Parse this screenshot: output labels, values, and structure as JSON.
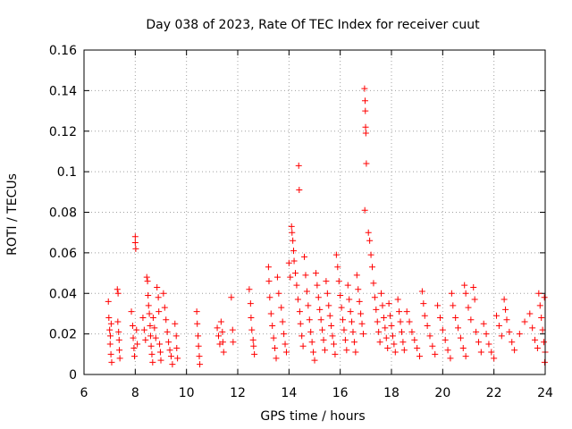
{
  "chart_data": {
    "type": "scatter",
    "title": "Day 038 of 2023, Rate Of TEC Index for receiver cuut",
    "xlabel": "GPS time / hours",
    "ylabel": "ROTI / TECUs",
    "xlim": [
      6,
      24
    ],
    "ylim": [
      0,
      0.16
    ],
    "xticks": [
      "6",
      "8",
      "10",
      "12",
      "14",
      "16",
      "18",
      "20",
      "22",
      "24"
    ],
    "yticks": [
      "0",
      "0.02",
      "0.04",
      "0.06",
      "0.08",
      "0.1",
      "0.12",
      "0.14",
      "0.16"
    ],
    "grid": true,
    "marker": "+",
    "color": "#ff0000",
    "series": [
      {
        "points": [
          [
            6.95,
            0.036
          ],
          [
            6.97,
            0.028
          ],
          [
            7.0,
            0.022
          ],
          [
            7.02,
            0.015
          ],
          [
            7.05,
            0.01
          ],
          [
            7.08,
            0.006
          ],
          [
            7.03,
            0.019
          ],
          [
            7.06,
            0.025
          ],
          [
            7.3,
            0.042
          ],
          [
            7.33,
            0.04
          ],
          [
            7.32,
            0.026
          ],
          [
            7.35,
            0.021
          ],
          [
            7.37,
            0.017
          ],
          [
            7.38,
            0.012
          ],
          [
            7.4,
            0.008
          ],
          [
            7.85,
            0.031
          ],
          [
            7.9,
            0.024
          ],
          [
            7.92,
            0.018
          ],
          [
            7.95,
            0.013
          ],
          [
            7.97,
            0.009
          ],
          [
            8.0,
            0.068
          ],
          [
            8.0,
            0.065
          ],
          [
            8.02,
            0.062
          ],
          [
            8.05,
            0.022
          ],
          [
            8.08,
            0.015
          ],
          [
            8.3,
            0.028
          ],
          [
            8.35,
            0.022
          ],
          [
            8.4,
            0.017
          ],
          [
            8.45,
            0.048
          ],
          [
            8.48,
            0.046
          ],
          [
            8.5,
            0.039
          ],
          [
            8.52,
            0.034
          ],
          [
            8.55,
            0.03
          ],
          [
            8.58,
            0.024
          ],
          [
            8.6,
            0.019
          ],
          [
            8.62,
            0.014
          ],
          [
            8.65,
            0.01
          ],
          [
            8.68,
            0.006
          ],
          [
            8.7,
            0.028
          ],
          [
            8.75,
            0.023
          ],
          [
            8.8,
            0.018
          ],
          [
            8.85,
            0.043
          ],
          [
            8.9,
            0.038
          ],
          [
            8.92,
            0.031
          ],
          [
            8.95,
            0.015
          ],
          [
            8.98,
            0.011
          ],
          [
            9.0,
            0.007
          ],
          [
            9.1,
            0.04
          ],
          [
            9.15,
            0.033
          ],
          [
            9.2,
            0.027
          ],
          [
            9.25,
            0.021
          ],
          [
            9.3,
            0.016
          ],
          [
            9.35,
            0.012
          ],
          [
            9.4,
            0.009
          ],
          [
            9.45,
            0.005
          ],
          [
            9.55,
            0.025
          ],
          [
            9.6,
            0.019
          ],
          [
            9.62,
            0.013
          ],
          [
            9.65,
            0.008
          ],
          [
            10.4,
            0.031
          ],
          [
            10.42,
            0.025
          ],
          [
            10.45,
            0.019
          ],
          [
            10.47,
            0.014
          ],
          [
            10.5,
            0.009
          ],
          [
            10.52,
            0.005
          ],
          [
            11.2,
            0.023
          ],
          [
            11.25,
            0.019
          ],
          [
            11.3,
            0.015
          ],
          [
            11.35,
            0.026
          ],
          [
            11.4,
            0.021
          ],
          [
            11.42,
            0.016
          ],
          [
            11.45,
            0.011
          ],
          [
            11.75,
            0.038
          ],
          [
            11.8,
            0.022
          ],
          [
            11.82,
            0.016
          ],
          [
            12.45,
            0.042
          ],
          [
            12.5,
            0.035
          ],
          [
            12.52,
            0.028
          ],
          [
            12.55,
            0.022
          ],
          [
            12.6,
            0.017
          ],
          [
            12.62,
            0.014
          ],
          [
            12.65,
            0.01
          ],
          [
            13.2,
            0.053
          ],
          [
            13.22,
            0.046
          ],
          [
            13.25,
            0.038
          ],
          [
            13.3,
            0.03
          ],
          [
            13.35,
            0.024
          ],
          [
            13.4,
            0.018
          ],
          [
            13.45,
            0.013
          ],
          [
            13.5,
            0.008
          ],
          [
            13.55,
            0.048
          ],
          [
            13.6,
            0.04
          ],
          [
            13.7,
            0.033
          ],
          [
            13.75,
            0.026
          ],
          [
            13.8,
            0.02
          ],
          [
            13.85,
            0.015
          ],
          [
            13.9,
            0.011
          ],
          [
            14.0,
            0.055
          ],
          [
            14.05,
            0.048
          ],
          [
            14.1,
            0.073
          ],
          [
            14.12,
            0.07
          ],
          [
            14.15,
            0.066
          ],
          [
            14.18,
            0.061
          ],
          [
            14.2,
            0.056
          ],
          [
            14.25,
            0.05
          ],
          [
            14.3,
            0.044
          ],
          [
            14.35,
            0.037
          ],
          [
            14.38,
            0.103
          ],
          [
            14.4,
            0.091
          ],
          [
            14.42,
            0.031
          ],
          [
            14.45,
            0.025
          ],
          [
            14.5,
            0.019
          ],
          [
            14.55,
            0.014
          ],
          [
            14.6,
            0.058
          ],
          [
            14.65,
            0.049
          ],
          [
            14.7,
            0.041
          ],
          [
            14.75,
            0.034
          ],
          [
            14.8,
            0.027
          ],
          [
            14.85,
            0.021
          ],
          [
            14.9,
            0.016
          ],
          [
            14.95,
            0.011
          ],
          [
            15.0,
            0.007
          ],
          [
            15.05,
            0.05
          ],
          [
            15.1,
            0.044
          ],
          [
            15.15,
            0.038
          ],
          [
            15.2,
            0.032
          ],
          [
            15.25,
            0.027
          ],
          [
            15.3,
            0.022
          ],
          [
            15.35,
            0.017
          ],
          [
            15.4,
            0.012
          ],
          [
            15.45,
            0.046
          ],
          [
            15.5,
            0.04
          ],
          [
            15.55,
            0.034
          ],
          [
            15.6,
            0.029
          ],
          [
            15.65,
            0.024
          ],
          [
            15.7,
            0.019
          ],
          [
            15.75,
            0.015
          ],
          [
            15.8,
            0.01
          ],
          [
            15.85,
            0.059
          ],
          [
            15.9,
            0.053
          ],
          [
            15.95,
            0.046
          ],
          [
            16.0,
            0.039
          ],
          [
            16.05,
            0.033
          ],
          [
            16.1,
            0.027
          ],
          [
            16.15,
            0.022
          ],
          [
            16.2,
            0.017
          ],
          [
            16.25,
            0.012
          ],
          [
            16.3,
            0.044
          ],
          [
            16.35,
            0.037
          ],
          [
            16.4,
            0.031
          ],
          [
            16.45,
            0.026
          ],
          [
            16.5,
            0.021
          ],
          [
            16.55,
            0.016
          ],
          [
            16.6,
            0.011
          ],
          [
            16.65,
            0.049
          ],
          [
            16.7,
            0.042
          ],
          [
            16.75,
            0.036
          ],
          [
            16.8,
            0.03
          ],
          [
            16.85,
            0.025
          ],
          [
            16.9,
            0.02
          ],
          [
            16.95,
            0.141
          ],
          [
            16.97,
            0.135
          ],
          [
            16.98,
            0.13
          ],
          [
            16.99,
            0.122
          ],
          [
            17.0,
            0.119
          ],
          [
            17.02,
            0.104
          ],
          [
            16.96,
            0.081
          ],
          [
            17.1,
            0.07
          ],
          [
            17.15,
            0.066
          ],
          [
            17.2,
            0.059
          ],
          [
            17.25,
            0.053
          ],
          [
            17.3,
            0.045
          ],
          [
            17.35,
            0.038
          ],
          [
            17.4,
            0.032
          ],
          [
            17.45,
            0.026
          ],
          [
            17.5,
            0.021
          ],
          [
            17.55,
            0.016
          ],
          [
            17.6,
            0.04
          ],
          [
            17.65,
            0.034
          ],
          [
            17.7,
            0.028
          ],
          [
            17.75,
            0.023
          ],
          [
            17.8,
            0.018
          ],
          [
            17.85,
            0.013
          ],
          [
            17.9,
            0.035
          ],
          [
            17.95,
            0.029
          ],
          [
            18.0,
            0.024
          ],
          [
            18.05,
            0.019
          ],
          [
            18.1,
            0.015
          ],
          [
            18.15,
            0.011
          ],
          [
            18.25,
            0.037
          ],
          [
            18.3,
            0.031
          ],
          [
            18.35,
            0.026
          ],
          [
            18.4,
            0.021
          ],
          [
            18.45,
            0.016
          ],
          [
            18.5,
            0.012
          ],
          [
            18.6,
            0.031
          ],
          [
            18.7,
            0.026
          ],
          [
            18.8,
            0.021
          ],
          [
            18.9,
            0.017
          ],
          [
            19.0,
            0.013
          ],
          [
            19.1,
            0.009
          ],
          [
            19.2,
            0.041
          ],
          [
            19.25,
            0.035
          ],
          [
            19.3,
            0.029
          ],
          [
            19.4,
            0.024
          ],
          [
            19.5,
            0.019
          ],
          [
            19.6,
            0.014
          ],
          [
            19.7,
            0.01
          ],
          [
            19.8,
            0.034
          ],
          [
            19.9,
            0.028
          ],
          [
            20.0,
            0.022
          ],
          [
            20.1,
            0.017
          ],
          [
            20.2,
            0.012
          ],
          [
            20.3,
            0.008
          ],
          [
            20.35,
            0.04
          ],
          [
            20.4,
            0.034
          ],
          [
            20.5,
            0.028
          ],
          [
            20.6,
            0.023
          ],
          [
            20.7,
            0.018
          ],
          [
            20.8,
            0.013
          ],
          [
            20.9,
            0.009
          ],
          [
            20.85,
            0.044
          ],
          [
            20.9,
            0.04
          ],
          [
            21.0,
            0.033
          ],
          [
            21.1,
            0.027
          ],
          [
            21.2,
            0.043
          ],
          [
            21.25,
            0.037
          ],
          [
            21.3,
            0.021
          ],
          [
            21.4,
            0.016
          ],
          [
            21.5,
            0.011
          ],
          [
            21.6,
            0.025
          ],
          [
            21.7,
            0.02
          ],
          [
            21.8,
            0.015
          ],
          [
            21.9,
            0.011
          ],
          [
            22.0,
            0.008
          ],
          [
            22.1,
            0.029
          ],
          [
            22.2,
            0.024
          ],
          [
            22.3,
            0.019
          ],
          [
            22.4,
            0.037
          ],
          [
            22.45,
            0.032
          ],
          [
            22.5,
            0.027
          ],
          [
            22.6,
            0.021
          ],
          [
            22.7,
            0.016
          ],
          [
            22.8,
            0.012
          ],
          [
            23.0,
            0.02
          ],
          [
            23.2,
            0.026
          ],
          [
            23.4,
            0.03
          ],
          [
            23.5,
            0.023
          ],
          [
            23.6,
            0.017
          ],
          [
            23.7,
            0.013
          ],
          [
            23.75,
            0.04
          ],
          [
            23.8,
            0.034
          ],
          [
            23.85,
            0.028
          ],
          [
            23.9,
            0.022
          ],
          [
            23.95,
            0.016
          ],
          [
            24.0,
            0.011
          ],
          [
            23.98,
            0.006
          ],
          [
            23.97,
            0.038
          ]
        ]
      }
    ]
  }
}
